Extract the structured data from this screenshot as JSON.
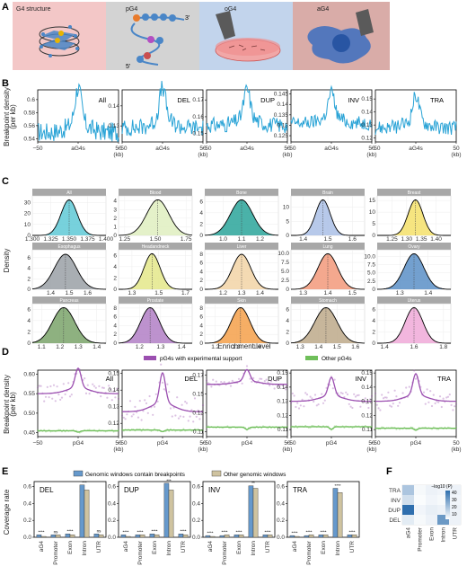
{
  "panels": {
    "a": "A",
    "b": "B",
    "c": "C",
    "d": "D",
    "e": "E",
    "f": "F"
  },
  "panel_a": {
    "g4": "G4 structure",
    "pg4": "pG4",
    "og4": "oG4",
    "ag4": "aG4",
    "three_prime": "3'",
    "five_prime": "5'"
  },
  "colors": {
    "blue_line": "#29a3d6",
    "purple": "#9b4fb0",
    "green": "#6fbf5a",
    "bar_blue": "#6699cc",
    "bar_tan": "#cfc3a0",
    "heat_dark": "#2f6fae"
  },
  "chart_data": [
    {
      "id": "B",
      "type": "line",
      "ylabel": "Breakpoint density\n(per kb)",
      "x_tick_labels": [
        "−50",
        "aG4s",
        "50\n(kb)"
      ],
      "xlim": [
        -50,
        50
      ],
      "panels": [
        {
          "name": "All",
          "yticks": [
            0.54,
            0.56,
            0.58,
            0.6
          ],
          "ylim": [
            0.535,
            0.615
          ],
          "base": 0.55,
          "peak": 0.605
        },
        {
          "name": "DEL",
          "yticks": [
            0.13,
            0.14
          ],
          "ylim": [
            0.122,
            0.148
          ],
          "base": 0.129,
          "peak": 0.145
        },
        {
          "name": "DUP",
          "yticks": [
            0.15,
            0.16,
            0.17
          ],
          "ylim": [
            0.145,
            0.176
          ],
          "base": 0.155,
          "peak": 0.172
        },
        {
          "name": "INV",
          "yticks": [
            0.125,
            0.13,
            0.135,
            0.14,
            0.145
          ],
          "ylim": [
            0.122,
            0.147
          ],
          "base": 0.131,
          "peak": 0.143
        },
        {
          "name": "TRA",
          "yticks": [
            0.12,
            0.13,
            0.14,
            0.15
          ],
          "ylim": [
            0.117,
            0.157
          ],
          "base": 0.128,
          "peak": 0.148
        }
      ]
    },
    {
      "id": "C",
      "type": "area",
      "xlabel": "Enrichment level",
      "ylabel": "Density",
      "panels": [
        {
          "name": "All",
          "mean": 1.35,
          "sd": 0.011,
          "xlim": [
            1.3,
            1.4
          ],
          "xticks": [
            "1.300",
            "1.325",
            "1.350",
            "1.375",
            "1.400"
          ],
          "yticks": [
            "0",
            "10",
            "20",
            "30"
          ],
          "ymax": 36,
          "color": "#5fc9d6"
        },
        {
          "name": "Blood",
          "mean": 1.52,
          "sd": 0.09,
          "xlim": [
            1.2,
            1.8
          ],
          "xticks": [
            "1.25",
            "1.50",
            "1.75"
          ],
          "yticks": [
            "0",
            "1",
            "2",
            "3",
            "4"
          ],
          "ymax": 4.6,
          "color": "#dfeec0"
        },
        {
          "name": "Bone",
          "mean": 1.1,
          "sd": 0.06,
          "xlim": [
            0.9,
            1.3
          ],
          "xticks": [
            "1.0",
            "1.1",
            "1.2"
          ],
          "yticks": [
            "0",
            "2",
            "4",
            "6"
          ],
          "ymax": 7,
          "color": "#2aa59a"
        },
        {
          "name": "Brain",
          "mean": 1.48,
          "sd": 0.03,
          "xlim": [
            1.35,
            1.65
          ],
          "xticks": [
            "1.4",
            "1.5",
            "1.6"
          ],
          "yticks": [
            "0",
            "5",
            "10"
          ],
          "ymax": 14,
          "color": "#aabfe6"
        },
        {
          "name": "Breast",
          "mean": 1.33,
          "sd": 0.025,
          "xlim": [
            1.2,
            1.45
          ],
          "xticks": [
            "1.25",
            "1.30",
            "1.35",
            "1.40"
          ],
          "yticks": [
            "0",
            "5",
            "10",
            "15"
          ],
          "ymax": 17,
          "color": "#f5e06a"
        },
        {
          "name": "Esophagus",
          "mean": 1.48,
          "sd": 0.06,
          "xlim": [
            1.3,
            1.7
          ],
          "xticks": [
            "1.4",
            "1.5",
            "1.6"
          ],
          "yticks": [
            "0",
            "2",
            "4",
            "6"
          ],
          "ymax": 7.5,
          "color": "#9aa0a6"
        },
        {
          "name": "Headandneck",
          "mean": 1.45,
          "sd": 0.06,
          "xlim": [
            1.2,
            1.75
          ],
          "xticks": [
            "1.3",
            "1.5",
            "1.7"
          ],
          "yticks": [
            "0",
            "2",
            "4",
            "6"
          ],
          "ymax": 7,
          "color": "#e4e88a"
        },
        {
          "name": "Liver",
          "mean": 1.3,
          "sd": 0.05,
          "xlim": [
            1.1,
            1.5
          ],
          "xticks": [
            "1.2",
            "1.3",
            "1.4"
          ],
          "yticks": [
            "0",
            "2",
            "4",
            "6",
            "8"
          ],
          "ymax": 9,
          "color": "#f2d4a6"
        },
        {
          "name": "Lung",
          "mean": 1.4,
          "sd": 0.04,
          "xlim": [
            1.25,
            1.55
          ],
          "xticks": [
            "1.3",
            "1.4",
            "1.5"
          ],
          "yticks": [
            "0",
            "2.5",
            "5.0",
            "7.5",
            "10.0"
          ],
          "ymax": 11,
          "color": "#f2997a"
        },
        {
          "name": "Ovary",
          "mean": 1.35,
          "sd": 0.035,
          "xlim": [
            1.22,
            1.48
          ],
          "xticks": [
            "1.3",
            "1.4"
          ],
          "yticks": [
            "0",
            "2.5",
            "5.0",
            "7.5",
            "10.0"
          ],
          "ymax": 12,
          "color": "#5b8fc7"
        },
        {
          "name": "Pancreas",
          "mean": 1.22,
          "sd": 0.06,
          "xlim": [
            1.05,
            1.45
          ],
          "xticks": [
            "1.1",
            "1.2",
            "1.3",
            "1.4"
          ],
          "yticks": [
            "0",
            "2",
            "4",
            "6"
          ],
          "ymax": 7,
          "color": "#7aa36a"
        },
        {
          "name": "Prostate",
          "mean": 1.25,
          "sd": 0.045,
          "xlim": [
            1.1,
            1.45
          ],
          "xticks": [
            "1.2",
            "1.3",
            "1.4"
          ],
          "yticks": [
            "0",
            "2",
            "4",
            "6",
            "8"
          ],
          "ymax": 9,
          "color": "#b27fc6"
        },
        {
          "name": "Skin",
          "mean": 1.32,
          "sd": 0.045,
          "xlim": [
            1.15,
            1.5
          ],
          "xticks": [
            "1.2",
            "1.3",
            "1.4"
          ],
          "yticks": [
            "0",
            "2",
            "4",
            "6",
            "8"
          ],
          "ymax": 9,
          "color": "#f5a04a"
        },
        {
          "name": "Stomach",
          "mean": 1.44,
          "sd": 0.06,
          "xlim": [
            1.25,
            1.65
          ],
          "xticks": [
            "1.3",
            "1.4",
            "1.5",
            "1.6"
          ],
          "yticks": [
            "0",
            "2",
            "4",
            "6"
          ],
          "ymax": 7,
          "color": "#bda98a"
        },
        {
          "name": "Uterus",
          "mean": 1.6,
          "sd": 0.06,
          "xlim": [
            1.35,
            1.85
          ],
          "xticks": [
            "1.4",
            "1.6",
            "1.8"
          ],
          "yticks": [
            "0",
            "2",
            "4",
            "6"
          ],
          "ymax": 7,
          "color": "#f0a9d8"
        }
      ]
    },
    {
      "id": "D",
      "type": "line",
      "ylabel": "Breakpoint density\n(per kb)",
      "x_tick_labels": [
        "−50",
        "pG4",
        "50\n(kb)"
      ],
      "xlim": [
        -50,
        50
      ],
      "legend": [
        "pG4s with experimental support",
        "Other pG4s"
      ],
      "series_colors": [
        "#9b4fb0",
        "#6fbf5a"
      ],
      "panels": [
        {
          "name": "All",
          "yticks": [
            0.45,
            0.5,
            0.55,
            0.6
          ],
          "ylim": [
            0.44,
            0.61
          ],
          "support_base": 0.55,
          "support_peak": 0.6,
          "other": 0.455
        },
        {
          "name": "DEL",
          "yticks": [
            0.12,
            0.13,
            0.14,
            0.15
          ],
          "ylim": [
            0.112,
            0.152
          ],
          "support_base": 0.127,
          "support_peak": 0.145,
          "other": 0.116
        },
        {
          "name": "DUP",
          "yticks": [
            0.11,
            0.13,
            0.15,
            0.17
          ],
          "ylim": [
            0.105,
            0.175
          ],
          "support_base": 0.16,
          "support_peak": 0.172,
          "other": 0.115
        },
        {
          "name": "INV",
          "yticks": [
            0.11,
            0.12,
            0.13,
            0.14,
            0.15
          ],
          "ylim": [
            0.105,
            0.152
          ],
          "support_base": 0.13,
          "support_peak": 0.143,
          "other": 0.112
        },
        {
          "name": "TRA",
          "yticks": [
            0.11,
            0.12,
            0.13,
            0.14,
            0.15
          ],
          "ylim": [
            0.105,
            0.152
          ],
          "support_base": 0.13,
          "support_peak": 0.145,
          "other": 0.111
        }
      ]
    },
    {
      "id": "E",
      "type": "bar",
      "ylabel": "Coverage rate",
      "categories": [
        "aG4",
        "Promoter",
        "Exon",
        "Intron",
        "UTR"
      ],
      "legend": [
        "Genomic windows contain breakpoints",
        "Other genomic windows"
      ],
      "ylim": [
        0,
        0.6
      ],
      "yticks": [
        "0.0",
        "0.2",
        "0.4",
        "0.6"
      ],
      "panels": [
        {
          "name": "DEL",
          "breakpoint": [
            0.03,
            0.03,
            0.04,
            0.62,
            0.04
          ],
          "other": [
            0.01,
            0.03,
            0.03,
            0.56,
            0.03
          ],
          "sig": [
            "****",
            "ns",
            "****",
            "***",
            "ns"
          ]
        },
        {
          "name": "DUP",
          "breakpoint": [
            0.03,
            0.03,
            0.04,
            0.64,
            0.04
          ],
          "other": [
            0.01,
            0.03,
            0.03,
            0.56,
            0.03
          ],
          "sig": [
            "****",
            "****",
            "****",
            "***",
            "****"
          ]
        },
        {
          "name": "INV",
          "breakpoint": [
            0.02,
            0.02,
            0.03,
            0.61,
            0.03
          ],
          "other": [
            0.01,
            0.03,
            0.03,
            0.58,
            0.03
          ],
          "sig": [
            "****",
            "****",
            "****",
            "**",
            "****"
          ]
        },
        {
          "name": "TRA",
          "breakpoint": [
            0.02,
            0.02,
            0.03,
            0.58,
            0.03
          ],
          "other": [
            0.01,
            0.03,
            0.03,
            0.53,
            0.03
          ],
          "sig": [
            "****",
            "****",
            "****",
            "****",
            "****"
          ]
        }
      ]
    },
    {
      "id": "F",
      "type": "heatmap",
      "rows": [
        "TRA",
        "INV",
        "DUP",
        "DEL"
      ],
      "cols": [
        "aG4",
        "Promoter",
        "Exon",
        "Intron",
        "UTR"
      ],
      "values": [
        [
          18,
          2,
          4,
          3,
          4
        ],
        [
          10,
          1,
          3,
          2,
          3
        ],
        [
          45,
          3,
          5,
          4,
          4
        ],
        [
          6,
          2,
          4,
          32,
          4
        ]
      ],
      "legend_title": "−log10 (P)",
      "legend_ticks": [
        "40",
        "30",
        "20",
        "10"
      ],
      "vmax": 45
    }
  ]
}
